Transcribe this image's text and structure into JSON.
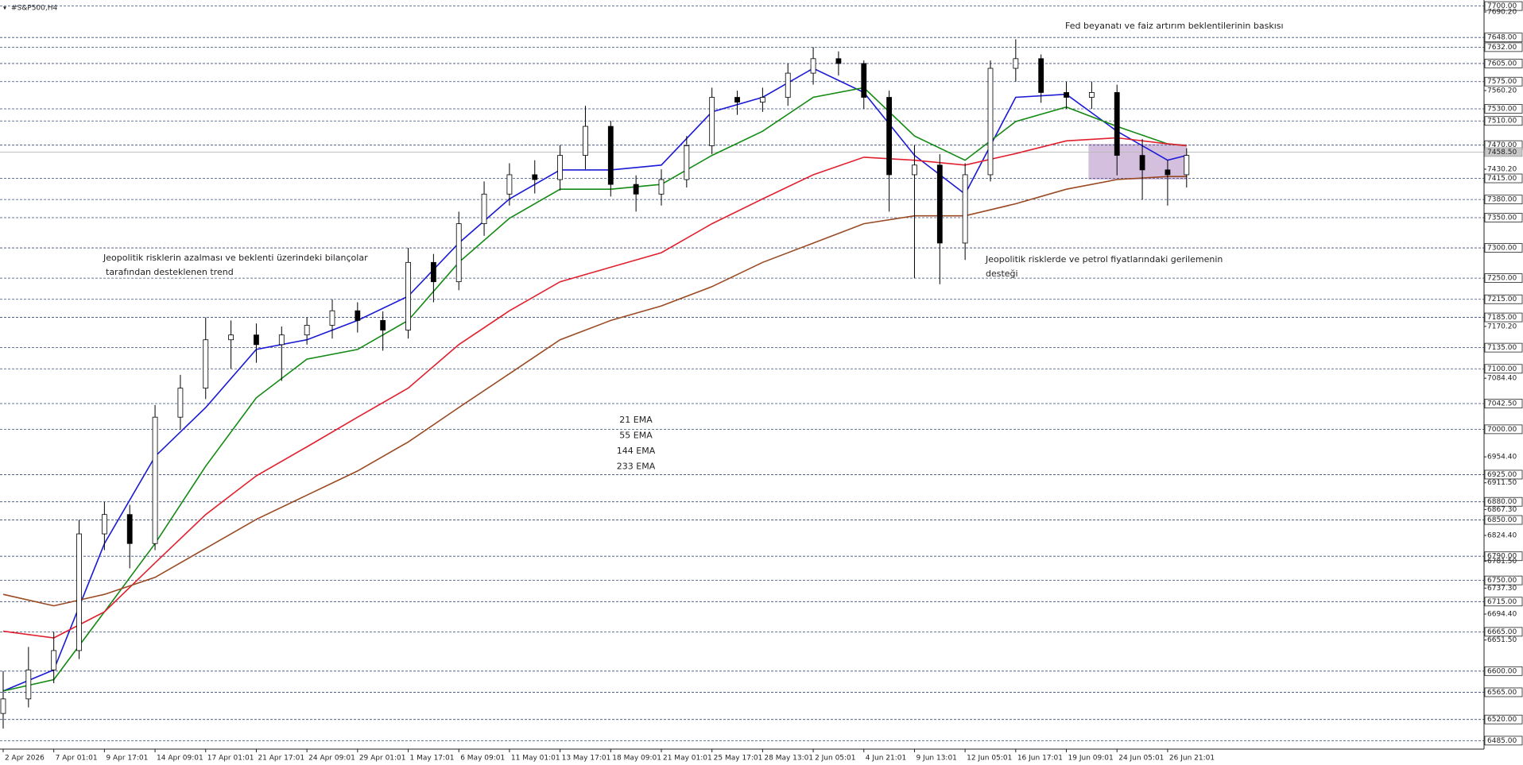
{
  "chart_data": {
    "type": "candlestick",
    "title": "#S&P500,H4",
    "xlim": [
      -1,
      468
    ],
    "ylim": [
      6471,
      7710
    ],
    "x": [
      0,
      8,
      16,
      24,
      32,
      40,
      48,
      56,
      64,
      72,
      80,
      88,
      96,
      104,
      112,
      120,
      128,
      136,
      144,
      152,
      160,
      168,
      176,
      184,
      192,
      200,
      208,
      216,
      224,
      232,
      240,
      248,
      256,
      264,
      272,
      280,
      288,
      296,
      304,
      312,
      320,
      328,
      336,
      344,
      352,
      360,
      368,
      374
    ],
    "open": [
      6530,
      6554,
      6602,
      6634,
      6827,
      6859,
      6811,
      7020,
      7068,
      7148,
      7156,
      7140,
      7156,
      7172,
      7196,
      7180,
      7164,
      7276,
      7244,
      7340,
      7389,
      7421,
      7413,
      7453,
      7501,
      7405,
      7389,
      7413,
      7469,
      7549,
      7541,
      7549,
      7589,
      7613,
      7605,
      7549,
      7421,
      7437,
      7308,
      7421,
      7597,
      7613,
      7557,
      7549,
      7557,
      7453,
      7429,
      7421
    ],
    "high": [
      6600,
      6640,
      6665,
      6850,
      6880,
      6875,
      7040,
      7090,
      7185,
      7180,
      7175,
      7170,
      7185,
      7215,
      7210,
      7195,
      7300,
      7290,
      7360,
      7410,
      7440,
      7445,
      7470,
      7535,
      7510,
      7420,
      7430,
      7485,
      7565,
      7560,
      7565,
      7605,
      7632,
      7625,
      7610,
      7560,
      7470,
      7455,
      7440,
      7610,
      7645,
      7620,
      7575,
      7575,
      7570,
      7480,
      7445,
      7465
    ],
    "low": [
      6505,
      6540,
      6580,
      6620,
      6800,
      6770,
      6800,
      7000,
      7050,
      7100,
      7110,
      7080,
      7140,
      7150,
      7160,
      7130,
      7150,
      7210,
      7230,
      7320,
      7370,
      7390,
      7395,
      7430,
      7385,
      7360,
      7370,
      7400,
      7455,
      7520,
      7525,
      7535,
      7570,
      7585,
      7530,
      7360,
      7250,
      7240,
      7280,
      7410,
      7575,
      7540,
      7530,
      7530,
      7420,
      7380,
      7370,
      7400
    ],
    "close": [
      6554,
      6602,
      6634,
      6827,
      6859,
      6811,
      7020,
      7068,
      7148,
      7156,
      7140,
      7156,
      7172,
      7196,
      7180,
      7164,
      7276,
      7244,
      7340,
      7389,
      7421,
      7413,
      7453,
      7501,
      7405,
      7389,
      7413,
      7469,
      7549,
      7541,
      7549,
      7589,
      7613,
      7605,
      7549,
      7421,
      7437,
      7308,
      7421,
      7597,
      7613,
      7557,
      7549,
      7557,
      7453,
      7429,
      7421,
      7453
    ],
    "series": [
      {
        "name": "21 EMA",
        "color": "#1a1ad6",
        "x": [
          0,
          16,
          32,
          48,
          64,
          80,
          96,
          112,
          128,
          144,
          160,
          176,
          192,
          208,
          224,
          240,
          256,
          272,
          288,
          304,
          320,
          336,
          352,
          368,
          374
        ],
        "values": [
          6567,
          6602,
          6811,
          6955,
          7036,
          7132,
          7148,
          7180,
          7220,
          7308,
          7381,
          7429,
          7429,
          7437,
          7525,
          7549,
          7597,
          7557,
          7453,
          7389,
          7549,
          7554,
          7493,
          7445,
          7453
        ]
      },
      {
        "name": "55 EMA",
        "color": "#138a13",
        "x": [
          0,
          16,
          32,
          48,
          64,
          80,
          96,
          112,
          128,
          144,
          160,
          176,
          192,
          208,
          224,
          240,
          256,
          272,
          288,
          304,
          320,
          336,
          352,
          368,
          374
        ],
        "values": [
          6567,
          6586,
          6698,
          6811,
          6939,
          7052,
          7116,
          7132,
          7180,
          7276,
          7349,
          7397,
          7397,
          7405,
          7453,
          7493,
          7549,
          7565,
          7485,
          7445,
          7509,
          7533,
          7501,
          7472,
          7469
        ]
      },
      {
        "name": "144 EMA",
        "color": "#e0202e",
        "x": [
          0,
          16,
          32,
          48,
          64,
          80,
          96,
          112,
          128,
          144,
          160,
          176,
          192,
          208,
          224,
          240,
          256,
          272,
          288,
          304,
          320,
          336,
          352,
          368,
          374
        ],
        "values": [
          6666,
          6655,
          6698,
          6779,
          6859,
          6923,
          6971,
          7020,
          7068,
          7140,
          7196,
          7244,
          7268,
          7292,
          7340,
          7381,
          7421,
          7450,
          7445,
          7437,
          7456,
          7477,
          7482,
          7472,
          7469
        ]
      },
      {
        "name": "233 EMA",
        "color": "#9a4a22",
        "x": [
          0,
          16,
          32,
          48,
          64,
          80,
          96,
          112,
          128,
          144,
          160,
          176,
          192,
          208,
          224,
          240,
          256,
          272,
          288,
          304,
          320,
          336,
          352,
          368,
          374
        ],
        "values": [
          6727,
          6708,
          6727,
          6755,
          6803,
          6851,
          6891,
          6931,
          6979,
          7036,
          7092,
          7148,
          7180,
          7204,
          7236,
          7276,
          7308,
          7340,
          7353,
          7353,
          7373,
          7397,
          7413,
          7418,
          7418
        ]
      }
    ],
    "xticks": [
      {
        "value": 0,
        "label": "2 Apr 2026"
      },
      {
        "value": 16,
        "label": "7 Apr 01:01"
      },
      {
        "value": 32,
        "label": "9 Apr 17:01"
      },
      {
        "value": 48,
        "label": "14 Apr 09:01"
      },
      {
        "value": 64,
        "label": "17 Apr 01:01"
      },
      {
        "value": 80,
        "label": "21 Apr 17:01"
      },
      {
        "value": 96,
        "label": "24 Apr 09:01"
      },
      {
        "value": 112,
        "label": "29 Apr 01:01"
      },
      {
        "value": 128,
        "label": "1 May 17:01"
      },
      {
        "value": 144,
        "label": "6 May 09:01"
      },
      {
        "value": 160,
        "label": "11 May 01:01"
      },
      {
        "value": 176,
        "label": "13 May 17:01"
      },
      {
        "value": 192,
        "label": "18 May 09:01"
      },
      {
        "value": 208,
        "label": "21 May 01:01"
      },
      {
        "value": 224,
        "label": "25 May 17:01"
      },
      {
        "value": 240,
        "label": "28 May 13:01"
      },
      {
        "value": 256,
        "label": "2 Jun 05:01"
      },
      {
        "value": 272,
        "label": "4 Jun 21:01"
      },
      {
        "value": 288,
        "label": "9 Jun 13:01"
      },
      {
        "value": 304,
        "label": "12 Jun 05:01"
      },
      {
        "value": 320,
        "label": "16 Jun 17:01"
      },
      {
        "value": 336,
        "label": "19 Jun 09:01"
      },
      {
        "value": 352,
        "label": "24 Jun 05:01"
      },
      {
        "value": 368,
        "label": "26 Jun 21:01"
      }
    ],
    "yticks": [
      {
        "value": 7690.2,
        "label": "7690.20"
      },
      {
        "value": 7560.2,
        "label": "7560.20"
      },
      {
        "value": 7430.2,
        "label": "7430.20"
      },
      {
        "value": 7170.2,
        "label": "7170.20"
      },
      {
        "value": 7084.4,
        "label": "7084.40"
      },
      {
        "value": 6954.4,
        "label": "6954.40"
      },
      {
        "value": 6911.5,
        "label": "6911.50"
      },
      {
        "value": 6867.3,
        "label": "6867.30"
      },
      {
        "value": 6824.4,
        "label": "6824.40"
      },
      {
        "value": 6781.5,
        "label": "6781.50"
      },
      {
        "value": 6737.3,
        "label": "6737.30"
      },
      {
        "value": 6694.4,
        "label": "6694.40"
      },
      {
        "value": 6651.5,
        "label": "6651.50"
      }
    ],
    "levels": [
      {
        "value": 7700,
        "label": "7700.00"
      },
      {
        "value": 7648,
        "label": "7648.00"
      },
      {
        "value": 7632,
        "label": "7632.00"
      },
      {
        "value": 7605,
        "label": "7605.00"
      },
      {
        "value": 7575,
        "label": "7575.00"
      },
      {
        "value": 7530,
        "label": "7530.00"
      },
      {
        "value": 7510,
        "label": "7510.00"
      },
      {
        "value": 7470,
        "label": "7470.00"
      },
      {
        "value": 7415,
        "label": "7415.00"
      },
      {
        "value": 7380,
        "label": "7380.00"
      },
      {
        "value": 7350,
        "label": "7350.00"
      },
      {
        "value": 7300,
        "label": "7300.00"
      },
      {
        "value": 7250,
        "label": "7250.00"
      },
      {
        "value": 7215,
        "label": "7215.00"
      },
      {
        "value": 7185,
        "label": "7185.00"
      },
      {
        "value": 7135,
        "label": "7135.00"
      },
      {
        "value": 7100,
        "label": "7100.00"
      },
      {
        "value": 7042.5,
        "label": "7042.50"
      },
      {
        "value": 7000,
        "label": "7000.00"
      },
      {
        "value": 6925,
        "label": "6925.00"
      },
      {
        "value": 6880,
        "label": "6880.00"
      },
      {
        "value": 6850,
        "label": "6850.00"
      },
      {
        "value": 6790,
        "label": "6790.00"
      },
      {
        "value": 6750,
        "label": "6750.00"
      },
      {
        "value": 6715,
        "label": "6715.00"
      },
      {
        "value": 6665,
        "label": "6665.00"
      },
      {
        "value": 6600,
        "label": "6600.00"
      },
      {
        "value": 6565,
        "label": "6565.00"
      },
      {
        "value": 6520,
        "label": "6520.00"
      },
      {
        "value": 6485,
        "label": "6485.00"
      }
    ],
    "current_price": {
      "value": 7458.5,
      "label": "7458.50"
    },
    "highlight": {
      "x": [
        343,
        374
      ],
      "y": [
        7413,
        7472
      ],
      "color": "#cdb4d9"
    },
    "annotations": [
      {
        "text": "Fed beyanatı ve faiz artırım beklentilerinin baskısı",
        "color": "#c0542c"
      },
      {
        "text": "Jeopolitik risklerin azalması ve beklenti üzerindeki bilançolar",
        "color": "#c0542c"
      },
      {
        "text": " tarafından desteklenen trend",
        "color": "#c0542c"
      },
      {
        "text": "Jeopolitik risklerde ve petrol fiyatlarındaki gerilemenin",
        "color": "#c0542c"
      },
      {
        "text": "desteği",
        "color": "#c0542c"
      }
    ]
  }
}
